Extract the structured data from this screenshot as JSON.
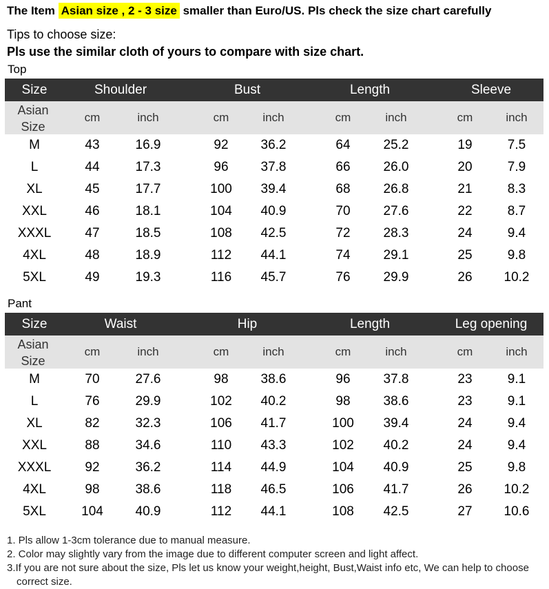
{
  "header": {
    "notice": {
      "before": "The Item",
      "highlight": "Asian size , 2 - 3 size",
      "after": "smaller than Euro/US. Pls check the size chart carefully"
    },
    "tips": "Tips to choose size:",
    "instruction": "Pls use the similar cloth of yours to compare with size chart."
  },
  "tables": [
    {
      "label": "Top",
      "size_header": "Size",
      "groups": [
        "Shoulder",
        "Bust",
        "Length",
        "Sleeve"
      ],
      "asian_size": "Asian Size",
      "units": [
        "cm",
        "inch",
        "cm",
        "inch",
        "cm",
        "inch",
        "cm",
        "inch"
      ],
      "rows": [
        [
          "M",
          "43",
          "16.9",
          "92",
          "36.2",
          "64",
          "25.2",
          "19",
          "7.5"
        ],
        [
          "L",
          "44",
          "17.3",
          "96",
          "37.8",
          "66",
          "26.0",
          "20",
          "7.9"
        ],
        [
          "XL",
          "45",
          "17.7",
          "100",
          "39.4",
          "68",
          "26.8",
          "21",
          "8.3"
        ],
        [
          "XXL",
          "46",
          "18.1",
          "104",
          "40.9",
          "70",
          "27.6",
          "22",
          "8.7"
        ],
        [
          "XXXL",
          "47",
          "18.5",
          "108",
          "42.5",
          "72",
          "28.3",
          "24",
          "9.4"
        ],
        [
          "4XL",
          "48",
          "18.9",
          "112",
          "44.1",
          "74",
          "29.1",
          "25",
          "9.8"
        ],
        [
          "5XL",
          "49",
          "19.3",
          "116",
          "45.7",
          "76",
          "29.9",
          "26",
          "10.2"
        ]
      ]
    },
    {
      "label": "Pant",
      "size_header": "Size",
      "groups": [
        "Waist",
        "Hip",
        "Length",
        "Leg opening"
      ],
      "asian_size": "Asian Size",
      "units": [
        "cm",
        "inch",
        "cm",
        "inch",
        "cm",
        "inch",
        "cm",
        "inch"
      ],
      "rows": [
        [
          "M",
          "70",
          "27.6",
          "98",
          "38.6",
          "96",
          "37.8",
          "23",
          "9.1"
        ],
        [
          "L",
          "76",
          "29.9",
          "102",
          "40.2",
          "98",
          "38.6",
          "23",
          "9.1"
        ],
        [
          "XL",
          "82",
          "32.3",
          "106",
          "41.7",
          "100",
          "39.4",
          "24",
          "9.4"
        ],
        [
          "XXL",
          "88",
          "34.6",
          "110",
          "43.3",
          "102",
          "40.2",
          "24",
          "9.4"
        ],
        [
          "XXXL",
          "92",
          "36.2",
          "114",
          "44.9",
          "104",
          "40.9",
          "25",
          "9.8"
        ],
        [
          "4XL",
          "98",
          "38.6",
          "118",
          "46.5",
          "106",
          "41.7",
          "26",
          "10.2"
        ],
        [
          "5XL",
          "104",
          "40.9",
          "112",
          "44.1",
          "108",
          "42.5",
          "27",
          "10.6"
        ]
      ]
    }
  ],
  "notes": [
    "1. Pls allow 1-3cm tolerance due to manual measure.",
    "2. Color may slightly vary from the image due to different computer screen and light affect.",
    "3.If you are not sure about the size, Pls let us know your weight,height, Bust,Waist info etc, We can help to choose correct size."
  ]
}
